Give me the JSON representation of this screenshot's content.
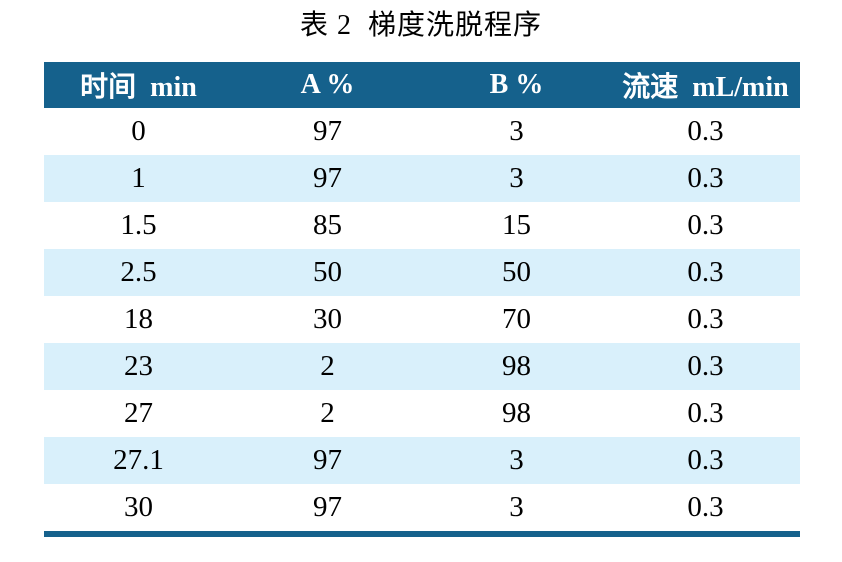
{
  "title": "表 2  梯度洗脱程序",
  "table": {
    "headers": [
      "时间  min",
      "A %",
      "B %",
      "流速  mL/min"
    ],
    "rows": [
      [
        "0",
        "97",
        "3",
        "0.3"
      ],
      [
        "1",
        "97",
        "3",
        "0.3"
      ],
      [
        "1.5",
        "85",
        "15",
        "0.3"
      ],
      [
        "2.5",
        "50",
        "50",
        "0.3"
      ],
      [
        "18",
        "30",
        "70",
        "0.3"
      ],
      [
        "23",
        "2",
        "98",
        "0.3"
      ],
      [
        "27",
        "2",
        "98",
        "0.3"
      ],
      [
        "27.1",
        "97",
        "3",
        "0.3"
      ],
      [
        "30",
        "97",
        "3",
        "0.3"
      ]
    ],
    "colors": {
      "header_bg": "#15618c",
      "header_text": "#ffffff",
      "stripe_bg": "#d9f0fb",
      "row_bg": "#ffffff",
      "bottom_border": "#15618c",
      "body_text": "#000000"
    }
  }
}
